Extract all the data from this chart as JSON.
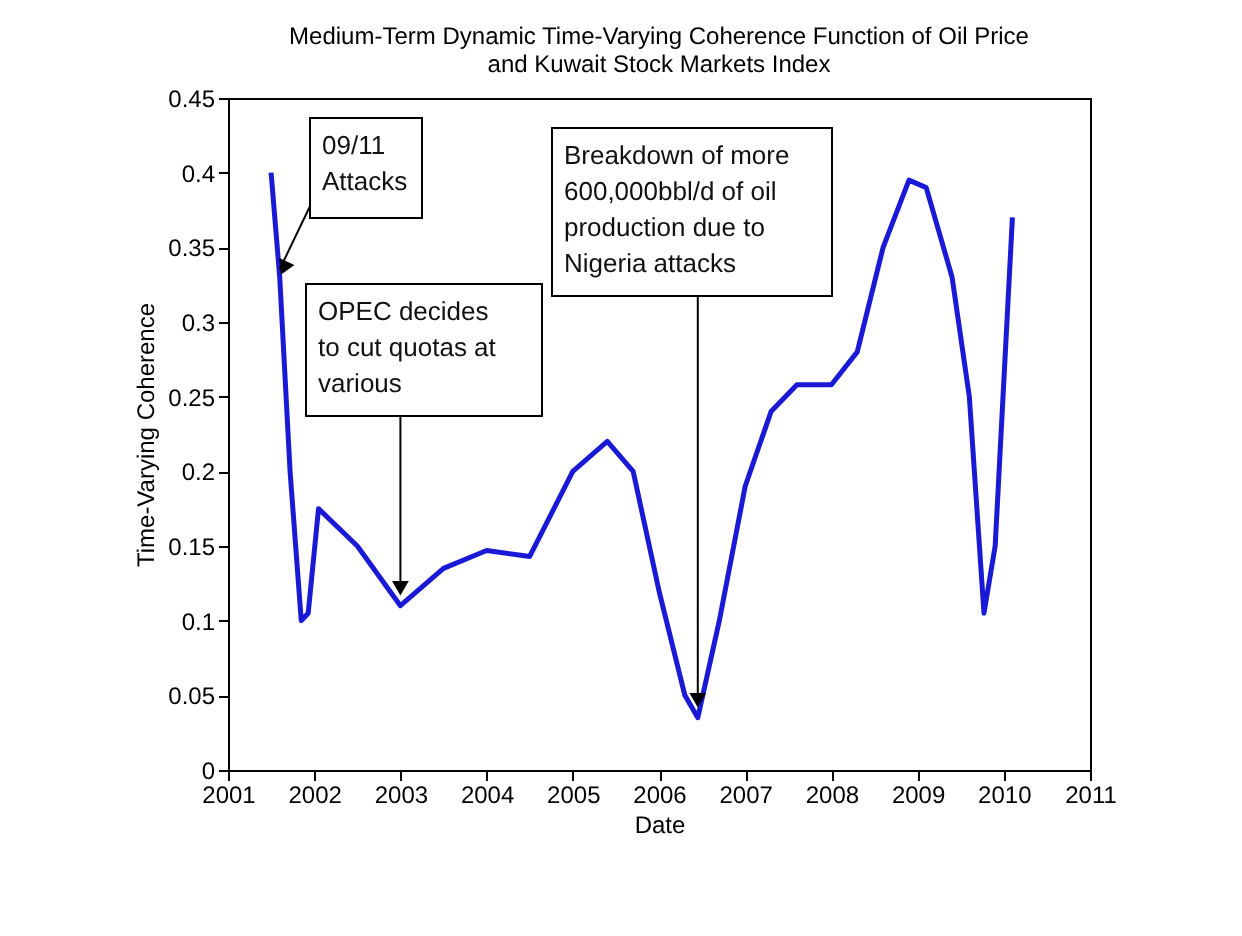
{
  "chart_data": {
    "type": "line",
    "title": "Medium-Term Dynamic Time-Varying Coherence Function of Oil Price and Kuwait Stock Markets Index",
    "xlabel": "Date",
    "ylabel": "Time-Varying Coherence",
    "x": [
      2001.5,
      2001.6,
      2001.72,
      2001.85,
      2001.93,
      2002.05,
      2002.5,
      2003.0,
      2003.5,
      2004.0,
      2004.5,
      2005.0,
      2005.4,
      2005.7,
      2006.0,
      2006.3,
      2006.45,
      2006.7,
      2007.0,
      2007.3,
      2007.6,
      2008.0,
      2008.3,
      2008.6,
      2008.9,
      2009.1,
      2009.4,
      2009.6,
      2009.77,
      2009.9,
      2010.1
    ],
    "series": [
      {
        "color": "#1a1ad6",
        "values": [
          0.4,
          0.33,
          0.2,
          0.1,
          0.105,
          0.175,
          0.15,
          0.11,
          0.135,
          0.147,
          0.143,
          0.2,
          0.22,
          0.2,
          0.12,
          0.05,
          0.035,
          0.1,
          0.19,
          0.24,
          0.258,
          0.258,
          0.28,
          0.35,
          0.395,
          0.39,
          0.33,
          0.25,
          0.105,
          0.15,
          0.37
        ]
      }
    ],
    "xlim": [
      2001,
      2011
    ],
    "xticks": [
      2001,
      2002,
      2003,
      2004,
      2005,
      2006,
      2007,
      2008,
      2009,
      2010,
      2011
    ],
    "ylim": [
      0,
      0.45
    ],
    "yticks": [
      0,
      0.05,
      0.1,
      0.15,
      0.2,
      0.25,
      0.3,
      0.35,
      0.4,
      0.45
    ],
    "grid": false,
    "annotations": [
      {
        "text": "09/11\nAttacks",
        "x": 2001.6,
        "y": 0.33
      },
      {
        "text": "OPEC decides\nto cut quotas at\nvarious",
        "x": 2003.0,
        "y": 0.115
      },
      {
        "text": "Breakdown of more\n 600,000bbl/d of oil\nproduction due to\nNigeria attacks",
        "x": 2006.45,
        "y": 0.04
      }
    ]
  }
}
